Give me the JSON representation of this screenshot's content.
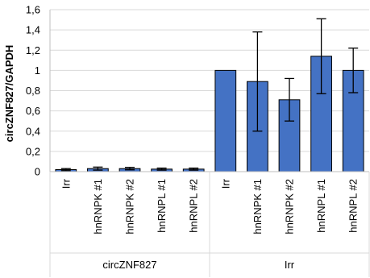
{
  "chart_data": {
    "type": "bar",
    "ylabel": "circZNF827/GAPDH",
    "xlabel": "",
    "title": "",
    "ylim": [
      0,
      1.6
    ],
    "yticks": [
      0,
      0.2,
      0.4,
      0.6,
      0.8,
      1,
      1.2,
      1.4,
      1.6
    ],
    "ytick_labels": [
      "0",
      "0,2",
      "0,4",
      "0,6",
      "0,8",
      "1",
      "1,2",
      "1,4",
      "1,6"
    ],
    "grid": true,
    "bar_color": "#4472C4",
    "groups": [
      {
        "label": "circZNF827",
        "categories": [
          "Irr",
          "hnRNPK #1",
          "hnRNPK #2",
          "hnRNPL #1",
          "hnRNPL #2"
        ],
        "values": [
          0.02,
          0.03,
          0.03,
          0.025,
          0.025
        ],
        "errors": [
          0.01,
          0.015,
          0.012,
          0.01,
          0.01
        ]
      },
      {
        "label": "Irr",
        "categories": [
          "Irr",
          "hnRNPK #1",
          "hnRNPK #2",
          "hnRNPL #1",
          "hnRNPL #2"
        ],
        "values": [
          1.0,
          0.89,
          0.71,
          1.14,
          1.0
        ],
        "errors": [
          0.0,
          0.49,
          0.21,
          0.37,
          0.22
        ]
      }
    ]
  }
}
